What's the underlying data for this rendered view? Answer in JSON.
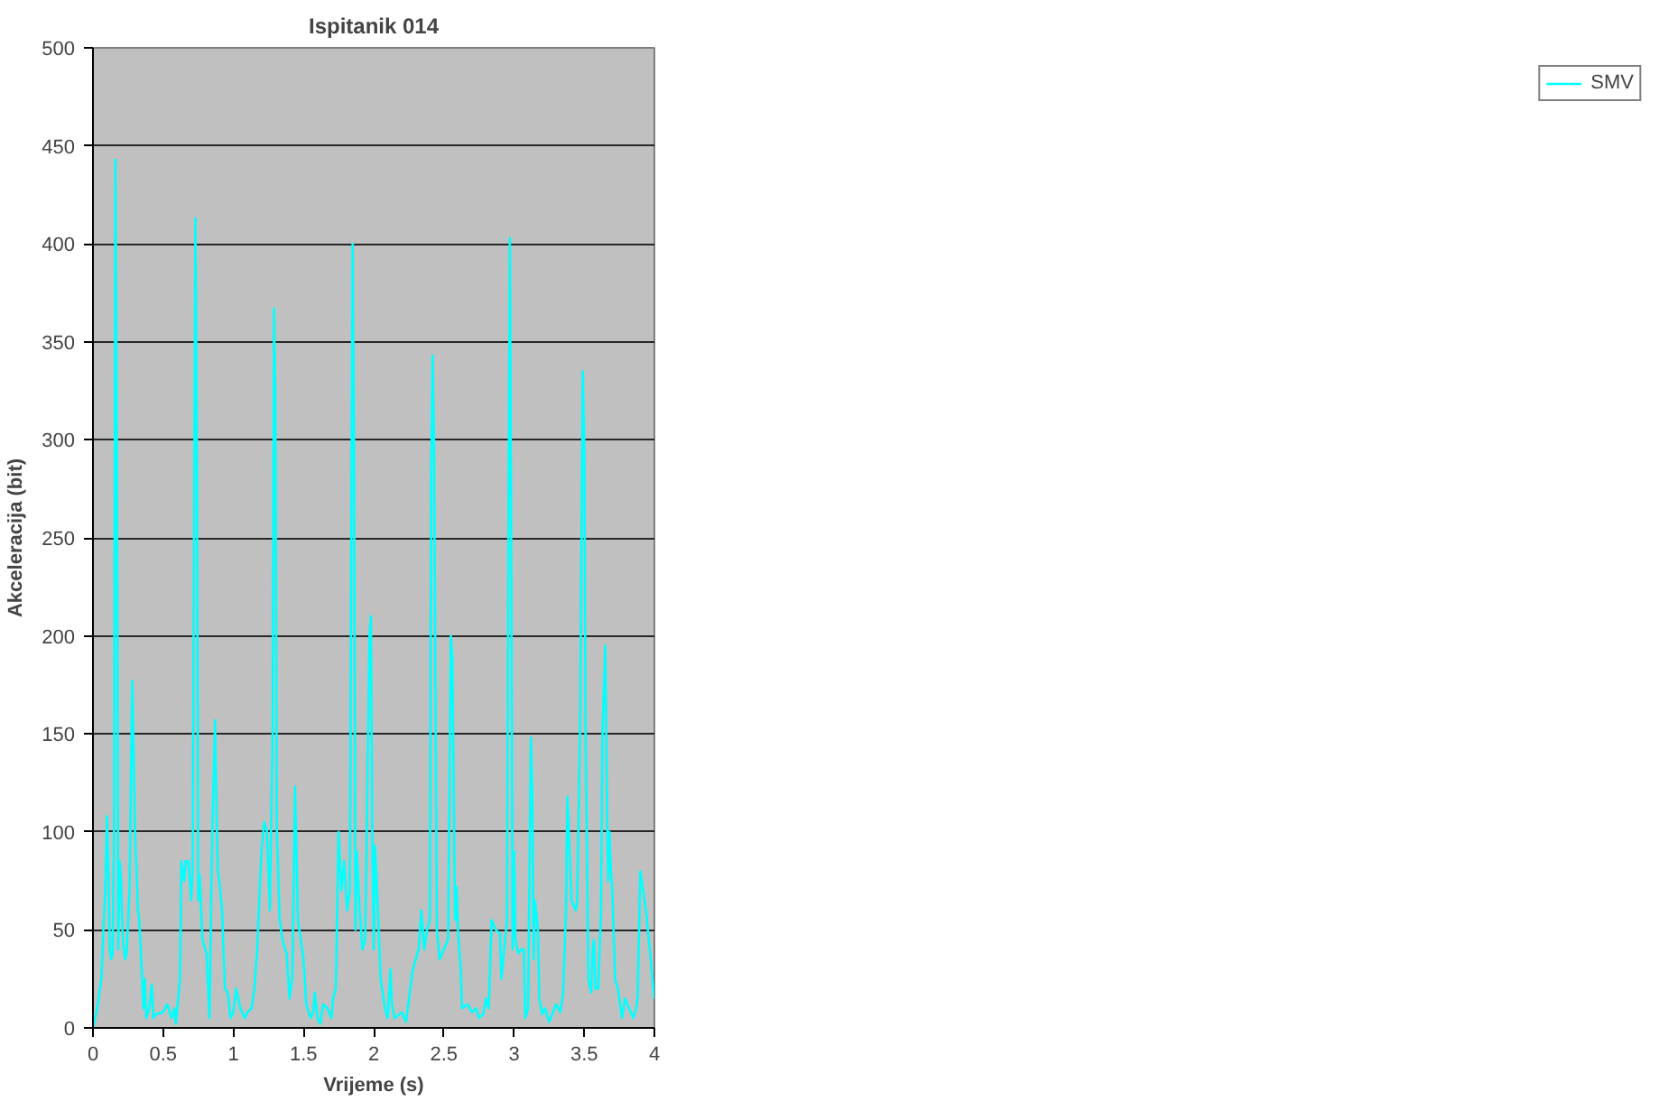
{
  "chart_data": {
    "type": "line",
    "title": "Ispitanik 014",
    "xlabel": "Vrijeme (s)",
    "ylabel": "Akceleracija (bit)",
    "xlim": [
      0,
      4
    ],
    "xticks": [
      0,
      0.5,
      1,
      1.5,
      2,
      2.5,
      3,
      3.5,
      4
    ],
    "ylim": [
      0,
      500
    ],
    "yticks": [
      0,
      50,
      100,
      150,
      200,
      250,
      300,
      350,
      400,
      450,
      500
    ],
    "grid": "y",
    "legend": "right",
    "marker": "none",
    "line_style": "solid",
    "series": [
      {
        "name": "SMV",
        "color": "#00ffff",
        "x": [
          0,
          0.03,
          0.06,
          0.08,
          0.09,
          0.1,
          0.11,
          0.12,
          0.13,
          0.14,
          0.15,
          0.16,
          0.17,
          0.18,
          0.19,
          0.2,
          0.21,
          0.22,
          0.23,
          0.24,
          0.26,
          0.28,
          0.29,
          0.3,
          0.32,
          0.33,
          0.35,
          0.36,
          0.37,
          0.38,
          0.4,
          0.42,
          0.43,
          0.45,
          0.5,
          0.53,
          0.56,
          0.58,
          0.59,
          0.62,
          0.63,
          0.65,
          0.66,
          0.68,
          0.7,
          0.71,
          0.72,
          0.73,
          0.74,
          0.75,
          0.76,
          0.78,
          0.8,
          0.81,
          0.83,
          0.85,
          0.87,
          0.88,
          0.89,
          0.9,
          0.92,
          0.94,
          0.96,
          0.98,
          1.0,
          1.02,
          1.05,
          1.08,
          1.1,
          1.13,
          1.15,
          1.17,
          1.2,
          1.22,
          1.24,
          1.26,
          1.28,
          1.29,
          1.3,
          1.31,
          1.33,
          1.35,
          1.37,
          1.38,
          1.4,
          1.42,
          1.44,
          1.46,
          1.48,
          1.5,
          1.52,
          1.55,
          1.57,
          1.58,
          1.6,
          1.62,
          1.64,
          1.67,
          1.7,
          1.71,
          1.73,
          1.75,
          1.77,
          1.79,
          1.81,
          1.83,
          1.85,
          1.86,
          1.87,
          1.88,
          1.9,
          1.92,
          1.94,
          1.97,
          1.98,
          1.99,
          2.0,
          2.01,
          2.03,
          2.05,
          2.08,
          2.1,
          2.12,
          2.13,
          2.15,
          2.2,
          2.23,
          2.26,
          2.28,
          2.3,
          2.32,
          2.34,
          2.36,
          2.38,
          2.4,
          2.41,
          2.42,
          2.43,
          2.45,
          2.47,
          2.5,
          2.53,
          2.55,
          2.56,
          2.58,
          2.59,
          2.6,
          2.62,
          2.63,
          2.67,
          2.7,
          2.73,
          2.75,
          2.78,
          2.8,
          2.82,
          2.84,
          2.87,
          2.9,
          2.91,
          2.93,
          2.95,
          2.96,
          2.97,
          2.98,
          2.99,
          3.0,
          3.01,
          3.03,
          3.05,
          3.07,
          3.08,
          3.1,
          3.12,
          3.13,
          3.14,
          3.15,
          3.17,
          3.18,
          3.2,
          3.22,
          3.25,
          3.3,
          3.33,
          3.35,
          3.37,
          3.38,
          3.39,
          3.41,
          3.44,
          3.45,
          3.47,
          3.49,
          3.5,
          3.51,
          3.53,
          3.55,
          3.56,
          3.57,
          3.58,
          3.6,
          3.62,
          3.63,
          3.65,
          3.66,
          3.67,
          3.68,
          3.69,
          3.7,
          3.72,
          3.74,
          3.77,
          3.79,
          3.82,
          3.85,
          3.87,
          3.88,
          3.9,
          3.92,
          3.94,
          3.96,
          4.0
        ],
        "values": [
          0,
          10,
          25,
          60,
          75,
          108,
          80,
          40,
          35,
          38,
          100,
          443,
          300,
          40,
          85,
          75,
          50,
          40,
          35,
          38,
          70,
          177,
          140,
          100,
          60,
          55,
          25,
          10,
          25,
          5,
          10,
          22,
          5,
          7,
          8,
          12,
          5,
          10,
          2,
          25,
          85,
          75,
          85,
          85,
          65,
          80,
          250,
          413,
          300,
          65,
          78,
          45,
          40,
          38,
          5,
          100,
          157,
          110,
          80,
          75,
          60,
          20,
          18,
          5,
          8,
          20,
          10,
          5,
          8,
          10,
          20,
          40,
          90,
          105,
          100,
          60,
          150,
          367,
          320,
          100,
          55,
          45,
          40,
          38,
          15,
          25,
          123,
          55,
          45,
          35,
          12,
          5,
          8,
          18,
          5,
          2,
          12,
          10,
          5,
          15,
          20,
          100,
          70,
          85,
          60,
          70,
          400,
          300,
          50,
          90,
          60,
          40,
          45,
          200,
          210,
          100,
          40,
          93,
          60,
          25,
          10,
          5,
          30,
          12,
          5,
          8,
          3,
          20,
          30,
          35,
          40,
          60,
          40,
          50,
          55,
          280,
          343,
          300,
          50,
          35,
          40,
          45,
          200,
          190,
          55,
          72,
          50,
          30,
          10,
          12,
          8,
          10,
          5,
          7,
          15,
          10,
          55,
          50,
          48,
          25,
          40,
          55,
          250,
          403,
          250,
          40,
          90,
          45,
          38,
          40,
          40,
          5,
          10,
          148,
          120,
          35,
          65,
          50,
          15,
          7,
          10,
          3,
          12,
          8,
          18,
          60,
          118,
          100,
          65,
          60,
          65,
          150,
          335,
          300,
          150,
          25,
          18,
          40,
          45,
          20,
          20,
          60,
          150,
          195,
          130,
          75,
          100,
          80,
          70,
          25,
          20,
          5,
          15,
          10,
          5,
          10,
          15,
          80,
          70,
          60,
          45,
          15
        ]
      }
    ]
  }
}
